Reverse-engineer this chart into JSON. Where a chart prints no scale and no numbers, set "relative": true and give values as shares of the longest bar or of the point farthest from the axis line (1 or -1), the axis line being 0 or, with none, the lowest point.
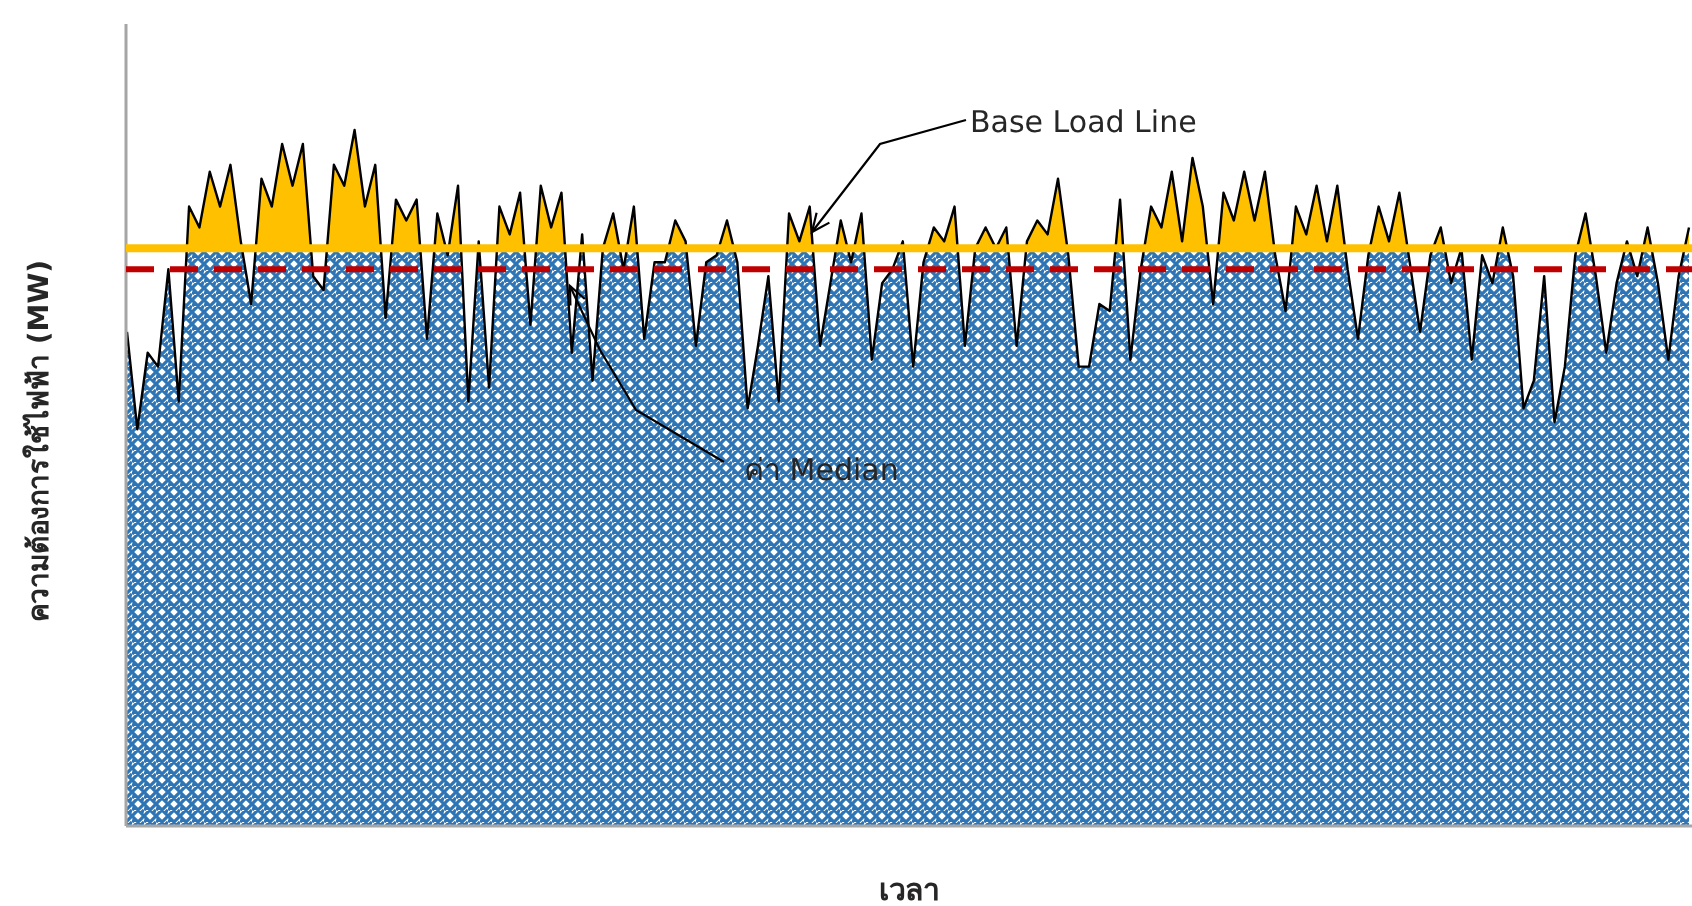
{
  "chart_data": {
    "type": "area",
    "relative": true,
    "xlabel": "เวลา",
    "ylabel": "ความต้องการใช้ไฟฟ้า (MW)",
    "categories": [
      null,
      null,
      null,
      null,
      null,
      null,
      null,
      null,
      null,
      null,
      null,
      null,
      null,
      null,
      null,
      null,
      null,
      null,
      null,
      null,
      null,
      null,
      null,
      null,
      null,
      null,
      null,
      null,
      null,
      null,
      null,
      null,
      null,
      null,
      null,
      null,
      null,
      null,
      null,
      null,
      null,
      null,
      null,
      null,
      null,
      null,
      null,
      null,
      null,
      null,
      null,
      null,
      null,
      null,
      null,
      null,
      null,
      null,
      null,
      null,
      null,
      null,
      null,
      null,
      null,
      null,
      null,
      null,
      null,
      null,
      null,
      null,
      null,
      null,
      null,
      null,
      null,
      null,
      null,
      null,
      null,
      null,
      null,
      null,
      null,
      null,
      null,
      null,
      null,
      null,
      null,
      null,
      null,
      null,
      null,
      null,
      null,
      null,
      null,
      null,
      null,
      null,
      null,
      null,
      null,
      null,
      null,
      null,
      null,
      null,
      null,
      null,
      null,
      null,
      null,
      null,
      null,
      null,
      null,
      null,
      null,
      null,
      null,
      null,
      null,
      null,
      null,
      null,
      null,
      null,
      null,
      null,
      null,
      null,
      null,
      null,
      null,
      null,
      null,
      null,
      null,
      null,
      null,
      null,
      null,
      null,
      null,
      null,
      null,
      null,
      null,
      null
    ],
    "series": [
      {
        "color": "#2e75b6",
        "values": [
          0.71,
          0.57,
          0.68,
          0.66,
          0.8,
          0.61,
          0.89,
          0.86,
          0.94,
          0.89,
          0.95,
          0.84,
          0.75,
          0.93,
          0.89,
          0.98,
          0.92,
          0.98,
          0.79,
          0.77,
          0.95,
          0.92,
          1.0,
          0.89,
          0.95,
          0.73,
          0.9,
          0.87,
          0.9,
          0.7,
          0.88,
          0.82,
          0.92,
          0.61,
          0.84,
          0.63,
          0.89,
          0.85,
          0.91,
          0.72,
          0.92,
          0.86,
          0.91,
          0.68,
          0.85,
          0.64,
          0.83,
          0.88,
          0.8,
          0.89,
          0.7,
          0.81,
          0.81,
          0.87,
          0.84,
          0.69,
          0.81,
          0.82,
          0.87,
          0.81,
          0.6,
          0.69,
          0.79,
          0.61,
          0.88,
          0.84,
          0.89,
          0.69,
          0.78,
          0.87,
          0.81,
          0.88,
          0.67,
          0.78,
          0.8,
          0.84,
          0.66,
          0.81,
          0.86,
          0.84,
          0.89,
          0.69,
          0.83,
          0.86,
          0.83,
          0.86,
          0.69,
          0.84,
          0.87,
          0.85,
          0.93,
          0.82,
          0.66,
          0.66,
          0.75,
          0.74,
          0.9,
          0.67,
          0.8,
          0.89,
          0.86,
          0.94,
          0.84,
          0.96,
          0.89,
          0.75,
          0.91,
          0.87,
          0.94,
          0.87,
          0.94,
          0.82,
          0.74,
          0.89,
          0.85,
          0.92,
          0.84,
          0.92,
          0.8,
          0.7,
          0.82,
          0.89,
          0.84,
          0.91,
          0.81,
          0.71,
          0.82,
          0.86,
          0.78,
          0.83,
          0.67,
          0.82,
          0.78,
          0.86,
          0.79,
          0.6,
          0.64,
          0.79,
          0.58,
          0.66,
          0.82,
          0.88,
          0.79,
          0.68,
          0.78,
          0.84,
          0.79,
          0.86,
          0.78,
          0.67,
          0.79,
          0.86
        ]
      }
    ],
    "ref_lines": [
      {
        "axis": "y",
        "value": 0.83,
        "label": "Base Load Line",
        "color": "#ffc000",
        "line_style": "solid"
      },
      {
        "axis": "y",
        "value": 0.8,
        "label": "ค่า Median",
        "color": "#c00000",
        "line_style": "dashed"
      }
    ]
  }
}
